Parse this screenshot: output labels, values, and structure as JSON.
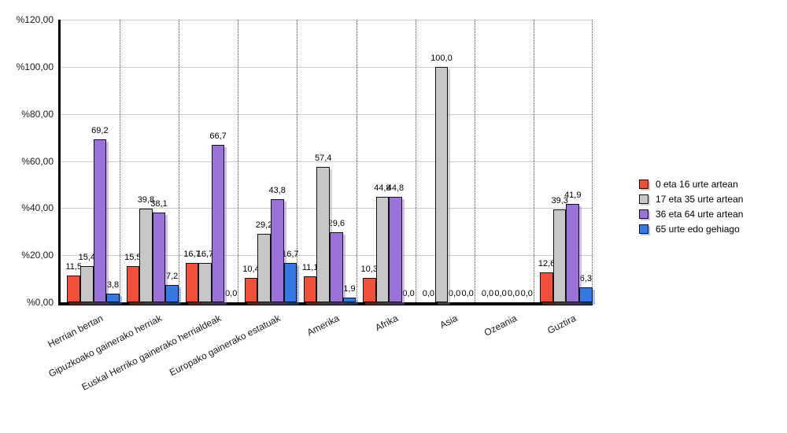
{
  "chart_data": {
    "type": "bar",
    "title": "",
    "categories": [
      "Herrian bertan",
      "Gipuzkoako gainerako herriak",
      "Euskal Herriko gainerako herrialdeak",
      "Europako gainerako estatuak",
      "Amerika",
      "Afrika",
      "Asia",
      "Ozeania",
      "Guztira"
    ],
    "series": [
      {
        "name": "0 eta 16 urte artean",
        "color": "#F1503B",
        "shadow_color": "rgba(241,80,59,0.40)",
        "values": [
          11.5,
          15.5,
          16.7,
          10.4,
          11.1,
          10.3,
          0.0,
          0.0,
          12.6
        ]
      },
      {
        "name": "17 eta 35 urte artean",
        "color": "#C7C7C7",
        "shadow_color": "rgba(150,150,150,0.40)",
        "values": [
          15.4,
          39.8,
          16.7,
          29.2,
          57.4,
          44.8,
          100.0,
          0.0,
          39.3
        ]
      },
      {
        "name": "36 eta 64 urte artean",
        "color": "#9A73D8",
        "shadow_color": "rgba(154,115,216,0.45)",
        "values": [
          69.2,
          38.1,
          66.7,
          43.8,
          29.6,
          44.8,
          0.0,
          0.0,
          41.9
        ]
      },
      {
        "name": "65 urte edo gehiago",
        "color": "#3679E2",
        "shadow_color": "rgba(54,121,226,0.45)",
        "values": [
          3.8,
          7.2,
          0.0,
          16.7,
          1.9,
          0.0,
          0.0,
          0.0,
          6.3
        ]
      }
    ],
    "y_axis": {
      "tick_labels": [
        "%0,00",
        "%20,00",
        "%40,00",
        "%60,00",
        "%80,00",
        "%100,00",
        "%120,00"
      ],
      "min": 0,
      "max": 120,
      "step": 20
    },
    "value_label_format": "one decimal, comma separator",
    "legend_position": "right",
    "grid": {
      "horizontal": "solid light gray",
      "vertical": "dotted category separators"
    }
  }
}
